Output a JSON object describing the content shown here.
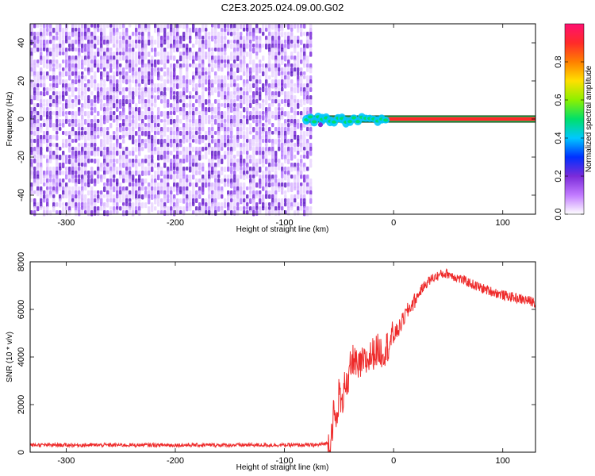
{
  "title": "C2E3.2025.024.09.00.G02",
  "chart_data": [
    {
      "type": "heatmap",
      "xlabel": "Height of straight line (km)",
      "ylabel": "Frequency (Hz)",
      "xlim": [
        -333,
        130
      ],
      "ylim": [
        -50,
        50
      ],
      "xticks": [
        -300,
        -200,
        -100,
        0,
        100
      ],
      "yticks": [
        -40,
        -20,
        0,
        20,
        40
      ],
      "colorbar": {
        "label": "Normalized spectral amplitude",
        "range": [
          0,
          1
        ],
        "ticks": [
          0.0,
          0.2,
          0.4,
          0.6,
          0.8
        ],
        "colors": [
          "#ffffff",
          "#c27bff",
          "#7b2bd9",
          "#0030ff",
          "#00c8ff",
          "#00e06a",
          "#8cf000",
          "#ffe000",
          "#ff8000",
          "#ff2a2a",
          "#ff1070"
        ]
      },
      "features": {
        "noise_region_x": [
          -333,
          -76
        ],
        "signal_line_start_x": -80,
        "signal_frequency": 0,
        "unsettled_signal_x": [
          -80,
          -5
        ]
      }
    },
    {
      "type": "line",
      "xlabel": "Height of straight line (km)",
      "ylabel": "SNR (10 * v/v)",
      "xlim": [
        -333,
        130
      ],
      "ylim": [
        0,
        8000
      ],
      "xticks": [
        -300,
        -200,
        -100,
        0,
        100
      ],
      "yticks": [
        0,
        2000,
        4000,
        6000,
        8000
      ],
      "series_color": "#ee2b2b",
      "x": [
        -333,
        -250,
        -150,
        -70,
        -58,
        -55,
        -52,
        -50,
        -47,
        -45,
        -42,
        -40,
        -36,
        -33,
        -30,
        -25,
        -20,
        -15,
        -10,
        -5,
        0,
        5,
        10,
        15,
        20,
        25,
        30,
        35,
        40,
        45,
        50,
        55,
        60,
        70,
        80,
        90,
        100,
        110,
        120,
        130
      ],
      "values": [
        300,
        300,
        300,
        300,
        400,
        1600,
        1200,
        2600,
        1800,
        3300,
        2500,
        3500,
        4000,
        3400,
        3700,
        3800,
        4100,
        4300,
        4200,
        4500,
        4900,
        5200,
        5700,
        6100,
        6400,
        6800,
        7100,
        7300,
        7400,
        7500,
        7500,
        7400,
        7300,
        7100,
        6900,
        6750,
        6600,
        6500,
        6400,
        6300
      ]
    }
  ]
}
